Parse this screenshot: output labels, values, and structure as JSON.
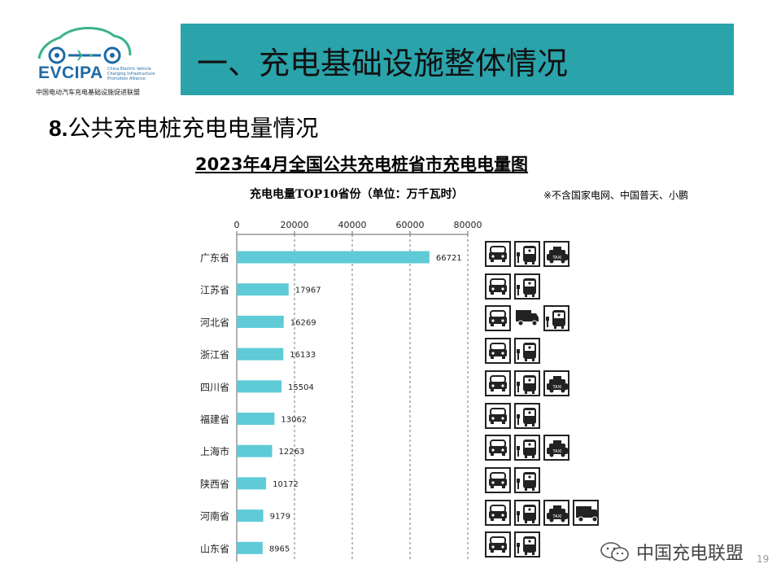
{
  "logo": {
    "title": "EVCIPA",
    "subtitle": "China Electric Vehicle Charging Infrastructure Promotion Alliance",
    "org_cn": "中国电动汽车充电基础设施促进联盟"
  },
  "header": {
    "title": "一、充电基础设施整体情况"
  },
  "section": {
    "number": "8.",
    "title": "公共充电桩充电电量情况"
  },
  "chart_header": {
    "title": "2023年4月全国公共充电桩省市充电电量图",
    "subtitle": "充电电量TOP10省份（单位：万千瓦时）",
    "note": "※不含国家电网、中国普天、小鹏"
  },
  "chart_data": {
    "type": "bar",
    "orientation": "horizontal",
    "title": "2023年4月全国公共充电桩省市充电电量图",
    "subtitle": "充电电量TOP10省份（单位：万千瓦时）",
    "categories": [
      "广东省",
      "江苏省",
      "河北省",
      "浙江省",
      "四川省",
      "福建省",
      "上海市",
      "陕西省",
      "河南省",
      "山东省"
    ],
    "values": [
      66721,
      17967,
      16269,
      16133,
      15504,
      13062,
      12263,
      10172,
      9179,
      8965
    ],
    "xlim": [
      0,
      80000
    ],
    "ticks": [
      "0",
      "20000",
      "40000",
      "60000",
      "80000"
    ],
    "tick_values": [
      0,
      20000,
      40000,
      60000,
      80000
    ],
    "axis_position": "top",
    "grid": "vertical dashed",
    "bar_color": "#5ecbd6"
  },
  "vehicle_icons": [
    [
      "car-icon",
      "bus-icon",
      "taxi-icon"
    ],
    [
      "car-icon",
      "bus-icon"
    ],
    [
      "car-icon",
      "truck-icon",
      "bus-icon"
    ],
    [
      "car-icon",
      "bus-icon"
    ],
    [
      "car-icon",
      "bus-icon",
      "taxi-icon"
    ],
    [
      "car-icon",
      "bus-icon"
    ],
    [
      "car-icon",
      "bus-icon",
      "taxi-icon"
    ],
    [
      "car-icon",
      "bus-icon"
    ],
    [
      "car-icon",
      "bus-icon",
      "taxi-icon",
      "truck-icon"
    ],
    [
      "car-icon",
      "bus-icon"
    ]
  ],
  "watermark": "中国充电联盟",
  "page_number": "19",
  "colors": {
    "header_bar": "#2aa3ab",
    "bar": "#5ecbd6",
    "logo_blue": "#1f6aa5",
    "logo_green": "#3bb38a"
  }
}
